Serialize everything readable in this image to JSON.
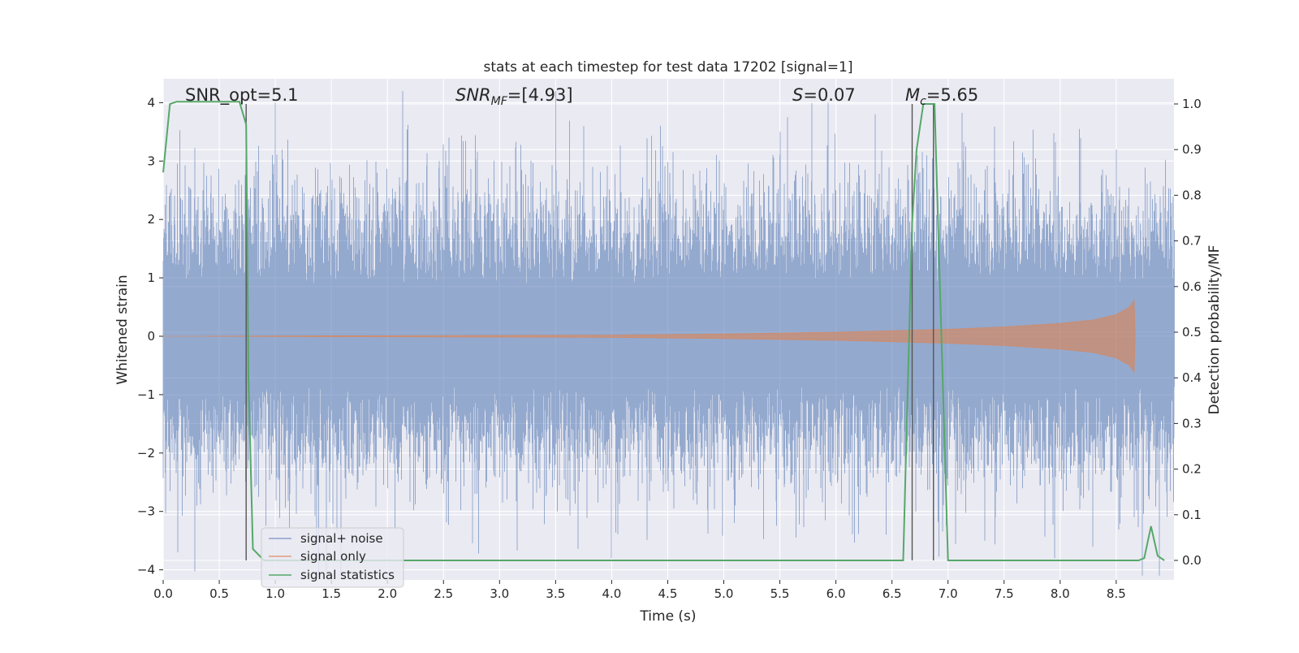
{
  "chart_data": {
    "type": "line",
    "title": "stats at each timestep for test data 17202 [signal=1]",
    "xlabel": "Time (s)",
    "ylabel": "Whitened strain",
    "ylabel_right": "Detection probability/MF",
    "xlim": [
      0.0,
      9.0
    ],
    "ylim": [
      -4.2,
      4.4
    ],
    "ylim_right": [
      -0.05,
      1.045
    ],
    "xticks": [
      "0.0",
      "0.5",
      "1.0",
      "1.5",
      "2.0",
      "2.5",
      "3.0",
      "3.5",
      "4.0",
      "4.5",
      "5.0",
      "5.5",
      "6.0",
      "6.5",
      "7.0",
      "7.5",
      "8.0",
      "8.5"
    ],
    "yticks": [
      "4",
      "3",
      "2",
      "1",
      "0",
      "−1",
      "−2",
      "−3",
      "−4"
    ],
    "yticks_right": [
      "1.0",
      "0.9",
      "0.8",
      "0.7",
      "0.6",
      "0.5",
      "0.4",
      "0.3",
      "0.2",
      "0.1",
      "0.0"
    ],
    "grid": true,
    "legend_position": "lower-left",
    "annotations": {
      "snr_opt": "SNR_opt=5.1",
      "snr_mf_main": "SNR",
      "snr_mf_sub": "MF",
      "snr_mf_tail": "=[4.93]",
      "s_main": "S",
      "s_tail": "=0.07",
      "mc_main": "M",
      "mc_sub": "c",
      "mc_tail": "=5.65"
    },
    "series": [
      {
        "name": "signal+ noise",
        "color": "#4c72b0",
        "axis": "left",
        "style": "noise band, approx. ±1 std with peaks to ±4",
        "peaks": [
          [
            0.13,
            -3.7
          ],
          [
            1.0,
            4.0
          ],
          [
            2.55,
            3.4
          ],
          [
            3.75,
            3.6
          ],
          [
            4.0,
            -3.8
          ],
          [
            5.5,
            3.5
          ],
          [
            6.35,
            3.8
          ],
          [
            7.95,
            -3.8
          ],
          [
            8.5,
            3.2
          ]
        ]
      },
      {
        "name": "signal only",
        "color": "#dd8452",
        "axis": "left",
        "style": "chirp",
        "envelope": [
          [
            0.0,
            0.0
          ],
          [
            4.0,
            0.02
          ],
          [
            5.0,
            0.04
          ],
          [
            6.0,
            0.07
          ],
          [
            7.0,
            0.12
          ],
          [
            7.5,
            0.16
          ],
          [
            8.0,
            0.22
          ],
          [
            8.3,
            0.28
          ],
          [
            8.5,
            0.37
          ],
          [
            8.62,
            0.5
          ],
          [
            8.66,
            0.62
          ],
          [
            8.67,
            0.0
          ]
        ]
      },
      {
        "name": "signal statistics",
        "color": "#55a868",
        "axis": "right",
        "points": [
          [
            0.0,
            0.85
          ],
          [
            0.06,
            1.0
          ],
          [
            0.12,
            1.005
          ],
          [
            0.2,
            1.005
          ],
          [
            0.3,
            1.005
          ],
          [
            0.4,
            1.005
          ],
          [
            0.5,
            1.005
          ],
          [
            0.6,
            1.005
          ],
          [
            0.68,
            1.005
          ],
          [
            0.74,
            0.955
          ],
          [
            0.76,
            0.4
          ],
          [
            0.8,
            0.025
          ],
          [
            0.9,
            0.0
          ],
          [
            1.0,
            0.0
          ],
          [
            2.0,
            0.0
          ],
          [
            3.0,
            0.0
          ],
          [
            4.0,
            0.0
          ],
          [
            5.0,
            0.0
          ],
          [
            6.0,
            0.0
          ],
          [
            6.6,
            0.0
          ],
          [
            6.68,
            0.74
          ],
          [
            6.72,
            0.9
          ],
          [
            6.78,
            1.0
          ],
          [
            6.88,
            1.0
          ],
          [
            6.94,
            0.5
          ],
          [
            7.0,
            0.0
          ],
          [
            7.5,
            0.0
          ],
          [
            8.0,
            0.0
          ],
          [
            8.5,
            0.0
          ],
          [
            8.7,
            0.0
          ],
          [
            8.75,
            0.005
          ],
          [
            8.81,
            0.075
          ],
          [
            8.87,
            0.01
          ],
          [
            8.93,
            0.0
          ]
        ]
      },
      {
        "name": "markers",
        "color": "#555555",
        "axis": "right",
        "style": "vertical lines",
        "x": [
          0.74,
          6.68,
          6.87
        ]
      }
    ]
  }
}
